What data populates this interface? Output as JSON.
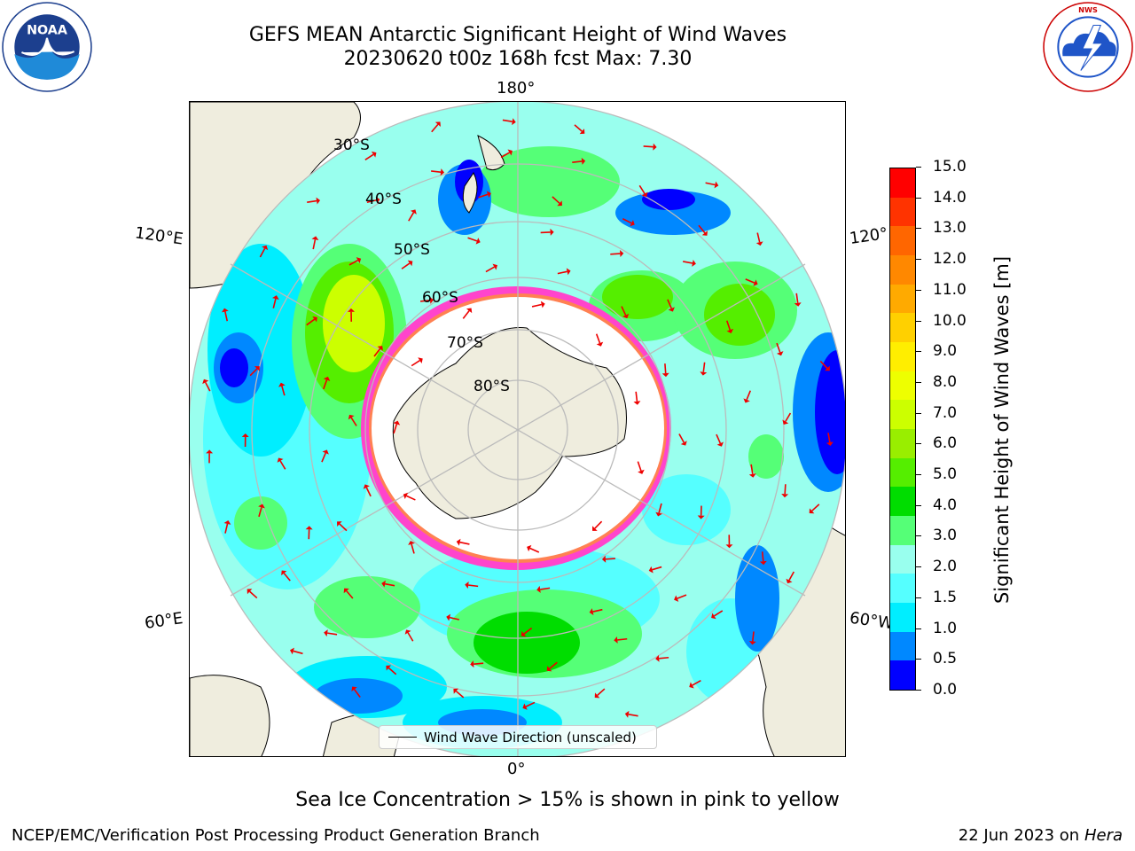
{
  "header": {
    "title_line1": "GEFS MEAN Antarctic Significant Height of Wind Waves",
    "title_line2": "20230620 t00z 168h fcst   Max: 7.30"
  },
  "logos": {
    "left": "NOAA",
    "left_ring_text": "NATIONAL OCEANIC AND ATMOSPHERIC ADMINISTRATION · U.S. DEPARTMENT OF COMMERCE",
    "right_ring_text": "NATIONAL WEATHER SERVICE"
  },
  "map": {
    "longitude_labels": {
      "top": "180°",
      "bottom": "0°",
      "upper_left": "120°E",
      "upper_right": "120°",
      "lower_left": "60°E",
      "lower_right": "60°W"
    },
    "latitude_labels": [
      "30°S",
      "40°S",
      "50°S",
      "60°S",
      "70°S",
      "80°S"
    ],
    "legend": "Wind Wave Direction (unscaled)",
    "colors": {
      "land": "#efedde",
      "ice": "#ffffff",
      "ice_edge": "#ff44cc",
      "graticule": "#bbbbbb",
      "arrow": "#ee0000"
    }
  },
  "colorbar": {
    "label": "Significant Height of Wind Waves [m]",
    "ticks": [
      "15.0",
      "14.0",
      "13.0",
      "12.0",
      "11.0",
      "10.0",
      "9.0",
      "8.0",
      "7.0",
      "6.0",
      "5.0",
      "4.0",
      "3.0",
      "2.0",
      "1.5",
      "1.0",
      "0.5",
      "0.0"
    ],
    "colors": [
      "#ff0000",
      "#ff3300",
      "#ff6600",
      "#ff8800",
      "#ffaa00",
      "#ffd000",
      "#ffee00",
      "#eeff00",
      "#ccff00",
      "#99ee00",
      "#55ee00",
      "#00dd00",
      "#55ff77",
      "#99ffee",
      "#55ffff",
      "#00eeff",
      "#0088ff",
      "#0000ff"
    ]
  },
  "subtitle": "Sea Ice Concentration > 15% is shown in pink to yellow",
  "footer": {
    "left": "NCEP/EMC/Verification Post Processing Product Generation Branch",
    "right_date": "22 Jun 2023 on",
    "right_machine": "Hera"
  }
}
